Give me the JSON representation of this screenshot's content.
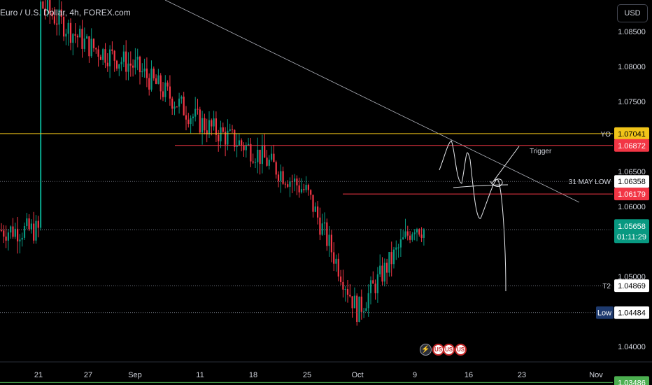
{
  "header": {
    "title": "Euro / U.S. Dollar, 4h, FOREX.com",
    "currency": "USD"
  },
  "chart_data": {
    "type": "candlestick",
    "symbol": "Euro / U.S. Dollar",
    "timeframe": "4h",
    "source": "FOREX.com",
    "x_ticks": [
      "21",
      "27",
      "Sep",
      "11",
      "18",
      "25",
      "Oct",
      "9",
      "16",
      "23",
      "Nov"
    ],
    "y_ticks": [
      "1.08500",
      "1.08000",
      "1.07500",
      "1.06500",
      "1.06000",
      "1.05000",
      "1.04000"
    ],
    "ylim": [
      1.0345,
      1.0895
    ],
    "price_path": [
      [
        "21",
        1.089
      ],
      [
        "27",
        1.083
      ],
      [
        "Sep",
        1.08
      ],
      [
        "11",
        1.072
      ],
      [
        "18",
        1.068
      ],
      [
        "25",
        1.062
      ],
      [
        "Oct",
        1.045
      ],
      [
        "9",
        1.0575
      ],
      [
        "9",
        1.0566
      ]
    ],
    "levels": [
      {
        "label": "YO",
        "value": "1.07041",
        "color": "#f0c419",
        "line": "solid"
      },
      {
        "label": "",
        "value": "1.06872",
        "color": "#f23645",
        "line": "solid"
      },
      {
        "label": "31 MAY LOW",
        "value": "1.06358",
        "color": "#d1d4dc",
        "line": "dotted"
      },
      {
        "label": "",
        "value": "1.06179",
        "color": "#f23645",
        "line": "solid"
      },
      {
        "label": "",
        "value": "1.05669",
        "color": "#f0c419",
        "line": "dotted"
      },
      {
        "label": "T2",
        "value": "1.04869",
        "color": "#d1d4dc",
        "line": "dotted"
      },
      {
        "label": "Low",
        "value": "1.04484",
        "color": "#d1d4dc",
        "line": "dotted"
      },
      {
        "label": "",
        "value": "1.03486",
        "color": "#4caf50",
        "line": "solid"
      }
    ],
    "current_price": {
      "value": "1.05658",
      "countdown": "01:11:29",
      "color": "#089981"
    },
    "annotations": [
      "Trigger"
    ],
    "up_color": "#089981",
    "down_color": "#f23645",
    "grid": false
  },
  "events": [
    "bolt-icon",
    "us-flag-icon",
    "us-flag-icon",
    "us-flag-icon"
  ]
}
